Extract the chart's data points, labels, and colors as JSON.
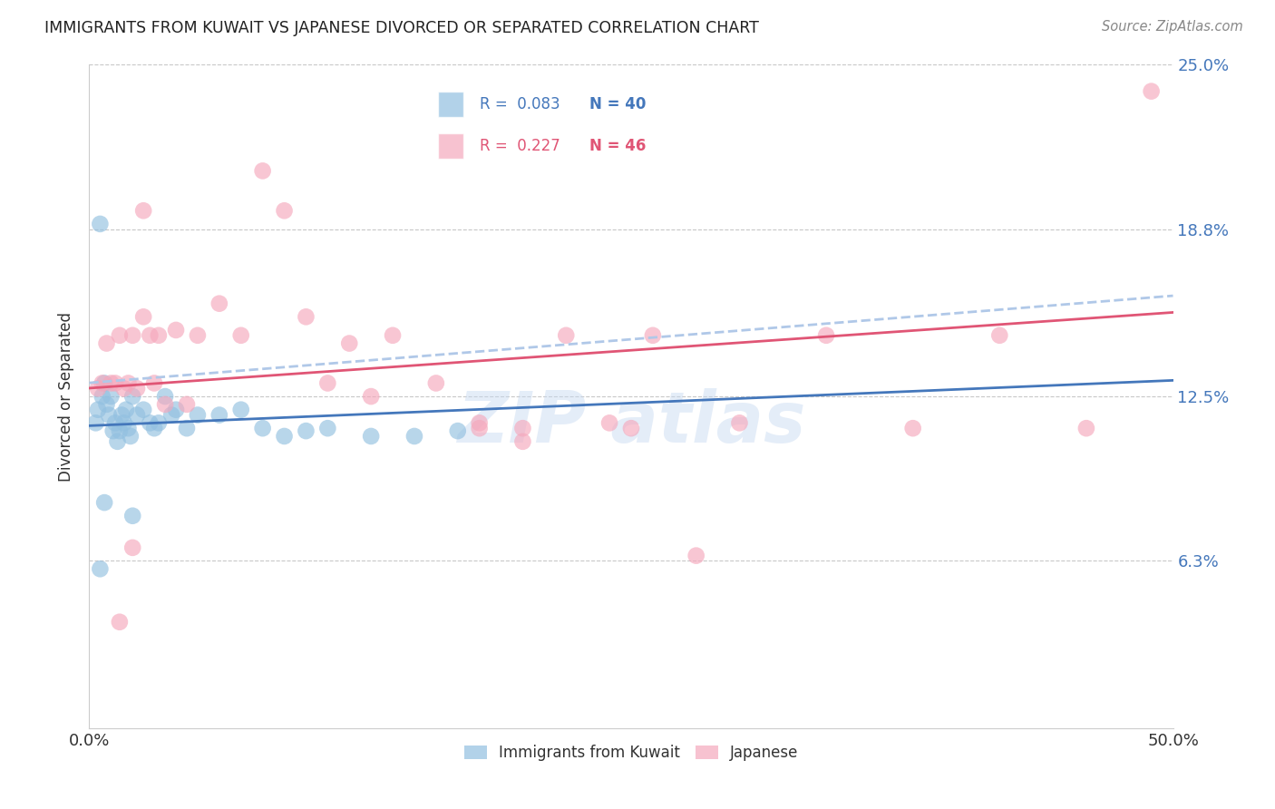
{
  "title": "IMMIGRANTS FROM KUWAIT VS JAPANESE DIVORCED OR SEPARATED CORRELATION CHART",
  "source_text": "Source: ZipAtlas.com",
  "ylabel": "Divorced or Separated",
  "xmin": 0.0,
  "xmax": 0.5,
  "ymin": 0.0,
  "ymax": 0.25,
  "ytick_values": [
    0.063,
    0.125,
    0.188,
    0.25
  ],
  "ytick_labels": [
    "6.3%",
    "12.5%",
    "18.8%",
    "25.0%"
  ],
  "grid_color": "#c8c8c8",
  "background_color": "#ffffff",
  "blue_color": "#92C0E0",
  "pink_color": "#F5A8BC",
  "blue_line_color": "#4477BB",
  "pink_line_color": "#E05575",
  "dashed_line_color": "#b0c8e8",
  "legend_label_blue": "Immigrants from Kuwait",
  "legend_label_pink": "Japanese",
  "blue_scatter_x": [
    0.003,
    0.004,
    0.005,
    0.006,
    0.007,
    0.008,
    0.009,
    0.01,
    0.011,
    0.012,
    0.013,
    0.014,
    0.015,
    0.016,
    0.017,
    0.018,
    0.019,
    0.02,
    0.022,
    0.025,
    0.028,
    0.03,
    0.032,
    0.035,
    0.038,
    0.04,
    0.045,
    0.05,
    0.06,
    0.07,
    0.08,
    0.09,
    0.1,
    0.11,
    0.13,
    0.15,
    0.17,
    0.005,
    0.007,
    0.02
  ],
  "blue_scatter_y": [
    0.115,
    0.12,
    0.19,
    0.125,
    0.13,
    0.122,
    0.118,
    0.125,
    0.112,
    0.115,
    0.108,
    0.112,
    0.118,
    0.115,
    0.12,
    0.113,
    0.11,
    0.125,
    0.118,
    0.12,
    0.115,
    0.113,
    0.115,
    0.125,
    0.118,
    0.12,
    0.113,
    0.118,
    0.118,
    0.12,
    0.113,
    0.11,
    0.112,
    0.113,
    0.11,
    0.11,
    0.112,
    0.06,
    0.085,
    0.08
  ],
  "pink_scatter_x": [
    0.004,
    0.006,
    0.008,
    0.01,
    0.012,
    0.014,
    0.016,
    0.018,
    0.02,
    0.022,
    0.025,
    0.028,
    0.03,
    0.032,
    0.035,
    0.04,
    0.045,
    0.05,
    0.06,
    0.07,
    0.08,
    0.09,
    0.1,
    0.11,
    0.12,
    0.13,
    0.14,
    0.16,
    0.18,
    0.2,
    0.22,
    0.24,
    0.26,
    0.3,
    0.34,
    0.38,
    0.42,
    0.46,
    0.49,
    0.014,
    0.02,
    0.28,
    0.025,
    0.18,
    0.2,
    0.25
  ],
  "pink_scatter_y": [
    0.128,
    0.13,
    0.145,
    0.13,
    0.13,
    0.148,
    0.128,
    0.13,
    0.148,
    0.128,
    0.155,
    0.148,
    0.13,
    0.148,
    0.122,
    0.15,
    0.122,
    0.148,
    0.16,
    0.148,
    0.21,
    0.195,
    0.155,
    0.13,
    0.145,
    0.125,
    0.148,
    0.13,
    0.115,
    0.113,
    0.148,
    0.115,
    0.148,
    0.115,
    0.148,
    0.113,
    0.148,
    0.113,
    0.24,
    0.04,
    0.068,
    0.065,
    0.195,
    0.113,
    0.108,
    0.113
  ]
}
